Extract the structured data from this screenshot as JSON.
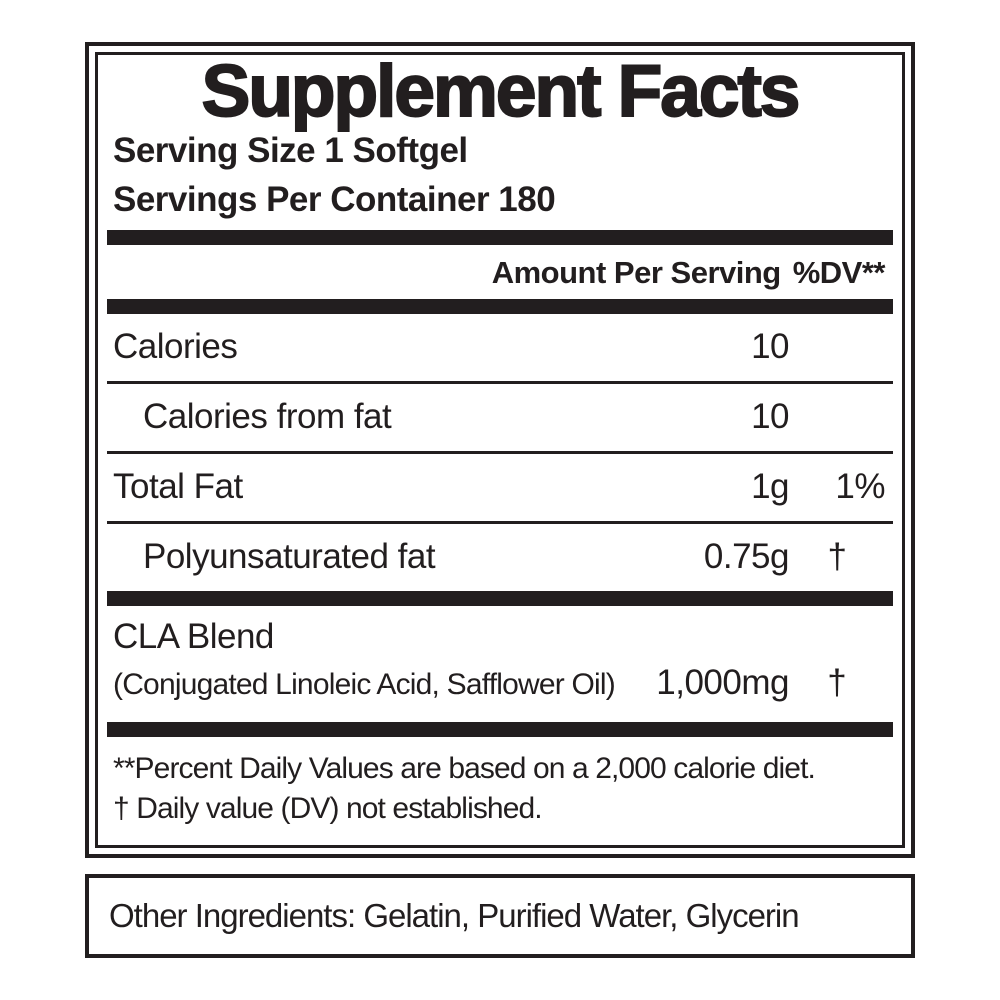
{
  "panel": {
    "title": "Supplement Facts",
    "serving_size": "Serving Size 1 Softgel",
    "servings_per_container": "Servings Per Container 180",
    "columns": {
      "amount": "Amount Per Serving",
      "dv": "%DV**"
    },
    "rows": [
      {
        "name": "Calories",
        "amount": "10",
        "dv": ""
      },
      {
        "name": "Calories from fat",
        "amount": "10",
        "dv": ""
      },
      {
        "name": "Total Fat",
        "amount": "1g",
        "dv": "1%"
      },
      {
        "name": "Polyunsaturated fat",
        "amount": "0.75g",
        "dv": "†"
      }
    ],
    "blend": {
      "name": "CLA Blend",
      "detail": "(Conjugated Linoleic Acid, Safflower Oil)",
      "amount": "1,000mg",
      "dv": "†"
    },
    "footnotes": [
      "**Percent Daily Values are based on a 2,000 calorie diet.",
      "† Daily value (DV) not established."
    ]
  },
  "other_ingredients": "Other Ingredients: Gelatin, Purified Water, Glycerin",
  "colors": {
    "ink": "#221e1f",
    "background": "#ffffff"
  }
}
